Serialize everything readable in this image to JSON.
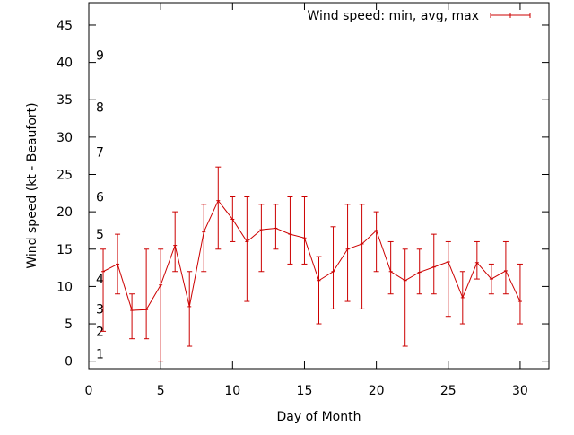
{
  "chart_data": {
    "type": "line",
    "title": "",
    "xlabel": "Day of Month",
    "ylabel": "Wind speed (kt - Beaufort)",
    "xlim": [
      0,
      32
    ],
    "ylim": [
      -1,
      48
    ],
    "x_ticks": [
      0,
      5,
      10,
      15,
      20,
      25,
      30
    ],
    "y_ticks": [
      0,
      5,
      10,
      15,
      20,
      25,
      30,
      35,
      40,
      45
    ],
    "grid": false,
    "legend_position": "top-right",
    "beaufort_labels": [
      {
        "label": "1",
        "kt": 1
      },
      {
        "label": "2",
        "kt": 4
      },
      {
        "label": "3",
        "kt": 7
      },
      {
        "label": "4",
        "kt": 11
      },
      {
        "label": "5",
        "kt": 17
      },
      {
        "label": "6",
        "kt": 22
      },
      {
        "label": "7",
        "kt": 28
      },
      {
        "label": "8",
        "kt": 34
      },
      {
        "label": "9",
        "kt": 41
      }
    ],
    "series": [
      {
        "name": "Wind speed: min, avg, max",
        "color": "#cc0000",
        "x": [
          1,
          2,
          3,
          4,
          5,
          6,
          7,
          8,
          9,
          10,
          11,
          12,
          13,
          14,
          15,
          16,
          17,
          18,
          19,
          20,
          21,
          22,
          23,
          24,
          25,
          26,
          27,
          28,
          29,
          30
        ],
        "avg": [
          12,
          13,
          6.8,
          6.9,
          10.2,
          15.5,
          7.3,
          17.3,
          21.5,
          19,
          16,
          17.6,
          17.8,
          17,
          16.5,
          10.8,
          12,
          15,
          15.7,
          17.5,
          12,
          10.8,
          11.9,
          12.6,
          13.3,
          8.5,
          13.2,
          11,
          12.1,
          8
        ],
        "min": [
          4,
          9,
          3,
          3,
          0,
          12,
          2,
          12,
          15,
          16,
          8,
          12,
          15,
          13,
          13,
          5,
          7,
          8,
          7,
          12,
          9,
          2,
          9,
          9,
          6,
          5,
          11,
          9,
          9,
          5
        ],
        "max": [
          15,
          17,
          9,
          15,
          15,
          20,
          12,
          21,
          26,
          22,
          22,
          21,
          21,
          22,
          22,
          14,
          18,
          21,
          21,
          20,
          16,
          15,
          15,
          17,
          16,
          12,
          16,
          13,
          16,
          13
        ]
      }
    ]
  }
}
